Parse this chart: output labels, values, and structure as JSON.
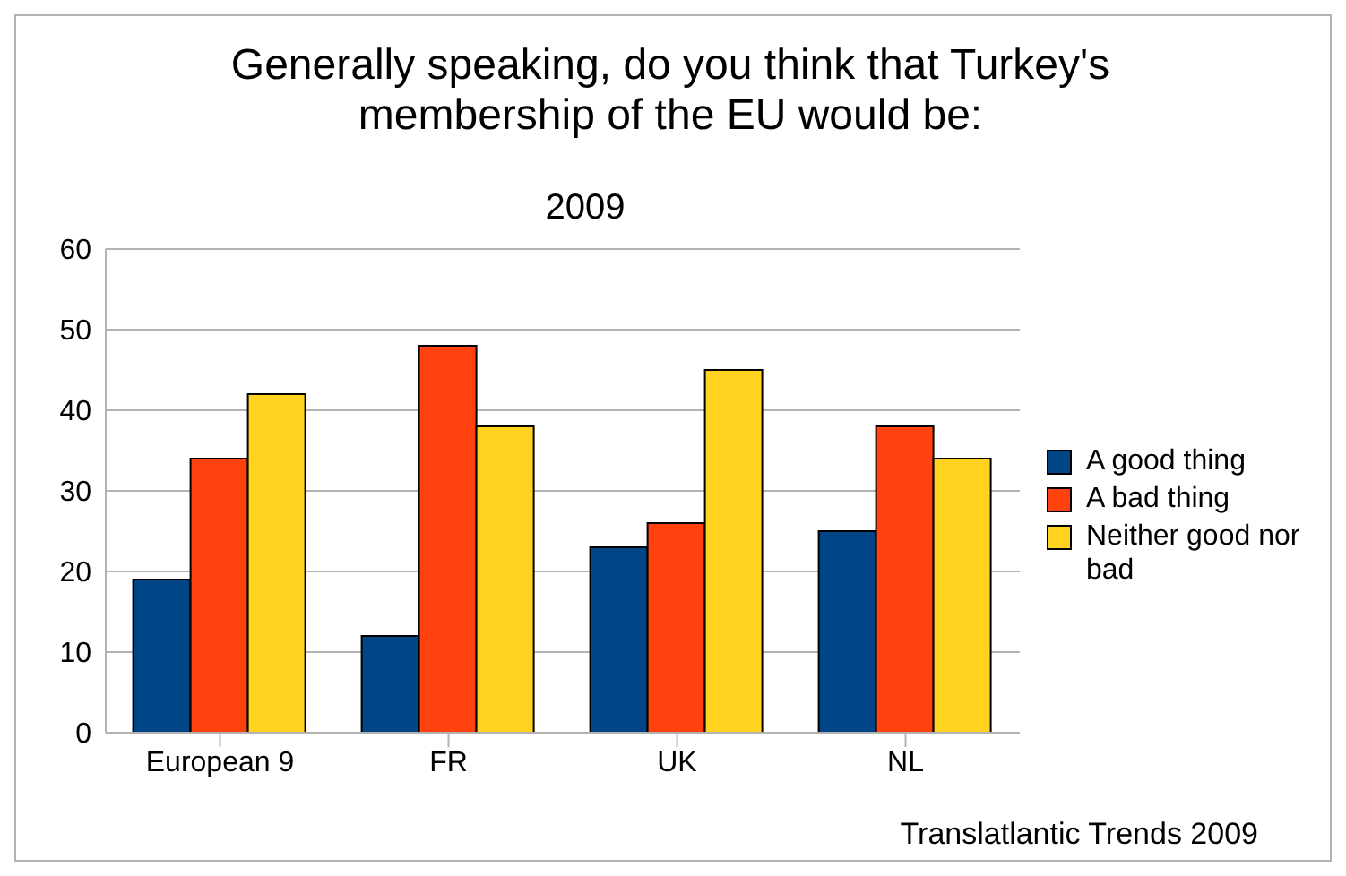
{
  "chart_data": {
    "type": "bar",
    "title": "Generally speaking, do you think that Turkey's membership of the EU would be:",
    "subtitle": "2009",
    "categories": [
      "European 9",
      "FR",
      "UK",
      "NL"
    ],
    "series": [
      {
        "name": "A good thing",
        "color": "#004586",
        "values": [
          19,
          12,
          23,
          25
        ]
      },
      {
        "name": "A bad thing",
        "color": "#ff420e",
        "values": [
          34,
          48,
          26,
          38
        ]
      },
      {
        "name": "Neither good nor bad",
        "color": "#ffd320",
        "values": [
          42,
          38,
          45,
          34
        ]
      }
    ],
    "ylim": [
      0,
      60
    ],
    "yticks": [
      0,
      10,
      20,
      30,
      40,
      50,
      60
    ],
    "grid": "y",
    "legend": "right",
    "annotations": [
      "Translatlantic Trends 2009"
    ]
  }
}
